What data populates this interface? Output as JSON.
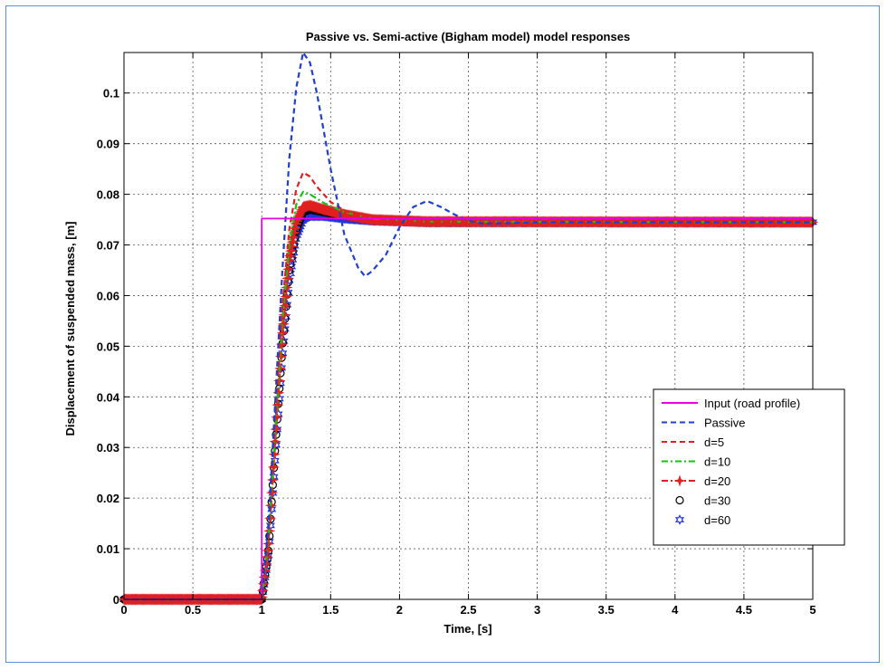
{
  "chart_data": {
    "type": "line",
    "title": "Passive vs. Semi-active (Bigham model) model responses",
    "xlabel": "Time, [s]",
    "ylabel": "Displacement of suspended mass, [m]",
    "xlim": [
      0,
      5
    ],
    "ylim": [
      0,
      0.108
    ],
    "xticks": [
      0,
      0.5,
      1,
      1.5,
      2,
      2.5,
      3,
      3.5,
      4,
      4.5,
      5
    ],
    "xtick_labels": [
      "0",
      "0.5",
      "1",
      "1.5",
      "2",
      "2.5",
      "3",
      "3.5",
      "4",
      "4.5",
      "5"
    ],
    "yticks": [
      0,
      0.01,
      0.02,
      0.03,
      0.04,
      0.05,
      0.06,
      0.07,
      0.08,
      0.09,
      0.1
    ],
    "ytick_labels": [
      "0",
      "0.01",
      "0.02",
      "0.03",
      "0.04",
      "0.05",
      "0.06",
      "0.07",
      "0.08",
      "0.09",
      "0.1"
    ],
    "grid": true,
    "legend_position": "bottom-right",
    "series": [
      {
        "name": "Input (road profile)",
        "color": "#e600e6",
        "style": "solid",
        "marker": "none",
        "x": [
          0,
          1.0,
          1.0,
          5
        ],
        "y": [
          0,
          0,
          0.0752,
          0.0752
        ]
      },
      {
        "name": "Passive",
        "color": "#1f3fd1",
        "style": "dashed",
        "marker": "none",
        "x": [
          0,
          1.0,
          1.05,
          1.1,
          1.15,
          1.2,
          1.25,
          1.3,
          1.35,
          1.4,
          1.5,
          1.6,
          1.7,
          1.75,
          1.8,
          1.9,
          2.0,
          2.1,
          2.2,
          2.3,
          2.4,
          2.5,
          2.6,
          2.8,
          3.0,
          5
        ],
        "y": [
          0,
          0,
          0.015,
          0.04,
          0.065,
          0.087,
          0.101,
          0.108,
          0.106,
          0.1,
          0.085,
          0.072,
          0.0655,
          0.0638,
          0.0648,
          0.068,
          0.0735,
          0.0775,
          0.0787,
          0.0775,
          0.076,
          0.0748,
          0.0742,
          0.0743,
          0.0745,
          0.0745
        ]
      },
      {
        "name": "d=5",
        "color": "#e02020",
        "style": "dashed",
        "marker": "none",
        "x": [
          0,
          1.0,
          1.05,
          1.1,
          1.15,
          1.2,
          1.25,
          1.3,
          1.35,
          1.4,
          1.5,
          1.6,
          1.7,
          1.9,
          2.2,
          2.6,
          5
        ],
        "y": [
          0,
          0,
          0.013,
          0.036,
          0.058,
          0.073,
          0.081,
          0.0843,
          0.0835,
          0.0815,
          0.0785,
          0.0768,
          0.0758,
          0.075,
          0.0746,
          0.0745,
          0.0745
        ]
      },
      {
        "name": "d=10",
        "color": "#11c611",
        "style": "dashdot",
        "marker": "none",
        "x": [
          0,
          1.0,
          1.05,
          1.1,
          1.15,
          1.2,
          1.25,
          1.3,
          1.35,
          1.45,
          1.6,
          1.8,
          2.2,
          5
        ],
        "y": [
          0,
          0,
          0.012,
          0.034,
          0.055,
          0.07,
          0.078,
          0.0805,
          0.08,
          0.0783,
          0.0765,
          0.0752,
          0.0746,
          0.0745
        ]
      },
      {
        "name": "d=20",
        "color": "#e02020",
        "style": "dashdot",
        "marker": "star",
        "x": [
          0,
          1.0,
          1.05,
          1.1,
          1.15,
          1.2,
          1.25,
          1.3,
          1.35,
          1.45,
          1.6,
          1.8,
          2.2,
          5
        ],
        "y": [
          0,
          0,
          0.011,
          0.032,
          0.052,
          0.067,
          0.0745,
          0.0775,
          0.0778,
          0.077,
          0.076,
          0.075,
          0.0746,
          0.0745
        ]
      },
      {
        "name": "d=30",
        "color": "#000000",
        "style": "none",
        "marker": "circle",
        "x": [
          0,
          1.0,
          1.05,
          1.1,
          1.15,
          1.2,
          1.25,
          1.3,
          1.35,
          1.45,
          1.6,
          1.8,
          2.2,
          2.7
        ],
        "y": [
          0,
          0,
          0.01,
          0.031,
          0.05,
          0.065,
          0.073,
          0.0765,
          0.077,
          0.0765,
          0.0758,
          0.075,
          0.0746,
          0.0745
        ]
      },
      {
        "name": "d=60",
        "color": "#2233dd",
        "style": "none",
        "marker": "hexagram",
        "x": [
          0,
          1.0,
          1.05,
          1.1,
          1.15,
          1.2,
          1.25,
          1.3,
          1.35,
          1.45,
          1.6,
          1.8,
          2.2,
          5
        ],
        "y": [
          0,
          0,
          0.009,
          0.029,
          0.048,
          0.063,
          0.0715,
          0.075,
          0.0757,
          0.0757,
          0.0752,
          0.0748,
          0.0745,
          0.0745
        ]
      }
    ]
  }
}
